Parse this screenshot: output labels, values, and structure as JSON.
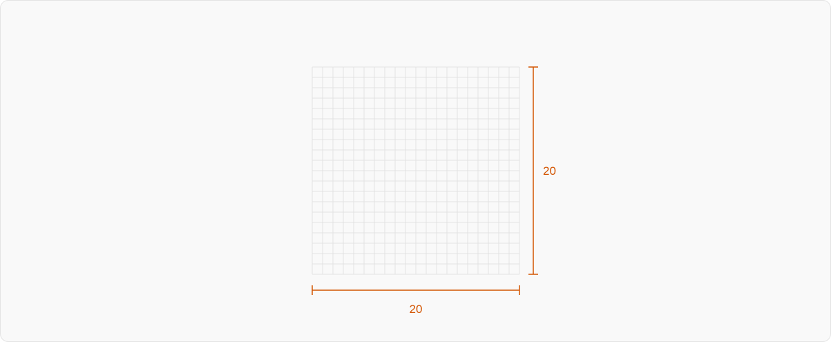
{
  "grid": {
    "columns": 20,
    "rows": 20,
    "line_color": "#e2e2e2"
  },
  "dimensions": {
    "color": "#d35400",
    "width_label": "20",
    "height_label": "20"
  }
}
